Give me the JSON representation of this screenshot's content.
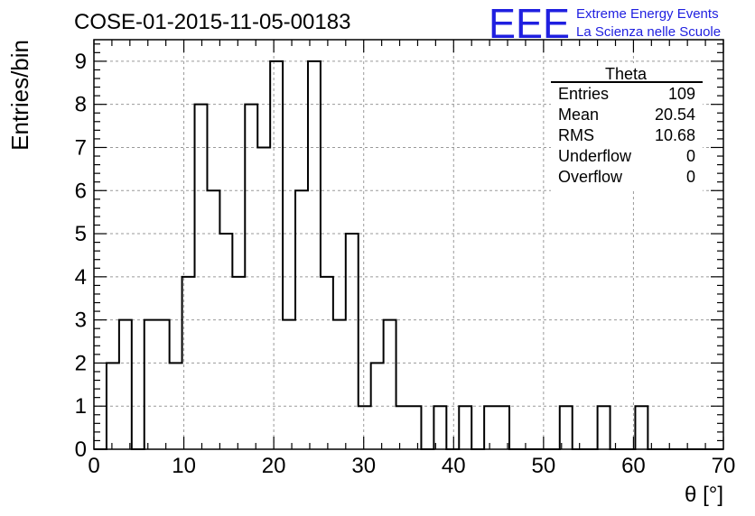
{
  "chart_data": {
    "type": "bar",
    "title": "COSE-01-2015-11-05-00183",
    "xlabel": "θ [°]",
    "ylabel": "Entries/bin",
    "xlim": [
      0,
      70
    ],
    "ylim": [
      0,
      9.5
    ],
    "bin_width": 1.4,
    "x_ticks": [
      0,
      10,
      20,
      30,
      40,
      50,
      60,
      70
    ],
    "x_tick_labels": [
      "0",
      "10",
      "20",
      "30",
      "40",
      "50",
      "60",
      "70"
    ],
    "y_ticks": [
      0,
      1,
      2,
      3,
      4,
      5,
      6,
      7,
      8,
      9
    ],
    "y_tick_labels": [
      "0",
      "1",
      "2",
      "3",
      "4",
      "5",
      "6",
      "7",
      "8",
      "9"
    ],
    "grid": true,
    "bin_edges": [
      0,
      1.4,
      2.8,
      4.2,
      5.6,
      7.0,
      8.4,
      9.8,
      11.2,
      12.6,
      14.0,
      15.4,
      16.8,
      18.2,
      19.6,
      21.0,
      22.4,
      23.8,
      25.2,
      26.6,
      28.0,
      29.4,
      30.8,
      32.2,
      33.6,
      35.0,
      36.4,
      37.8,
      39.2,
      40.6,
      42.0,
      43.4,
      44.8,
      46.2,
      47.6,
      49.0,
      50.4,
      51.8,
      53.2,
      54.6,
      56.0,
      57.4,
      58.8,
      60.2,
      61.6,
      63.0,
      64.4,
      65.8,
      67.2,
      68.6,
      70.0
    ],
    "values": [
      0,
      2,
      3,
      0,
      3,
      3,
      2,
      4,
      8,
      6,
      5,
      4,
      8,
      7,
      9,
      3,
      6,
      9,
      4,
      3,
      5,
      1,
      2,
      3,
      1,
      1,
      0,
      1,
      0,
      1,
      0,
      1,
      1,
      0,
      0,
      0,
      0,
      1,
      0,
      0,
      1,
      0,
      0,
      1,
      0,
      0,
      0,
      0,
      0,
      0
    ]
  },
  "stats_box": {
    "title": "Theta",
    "rows": [
      {
        "label": "Entries",
        "value": "109"
      },
      {
        "label": "Mean",
        "value": "20.54"
      },
      {
        "label": "RMS",
        "value": "10.68"
      },
      {
        "label": "Underflow",
        "value": "0"
      },
      {
        "label": "Overflow",
        "value": "0"
      }
    ]
  },
  "logo": {
    "text": "EEE",
    "line1": "Extreme Energy Events",
    "line2": "La Scienza nelle Scuole",
    "color": "#1f1fe0"
  }
}
